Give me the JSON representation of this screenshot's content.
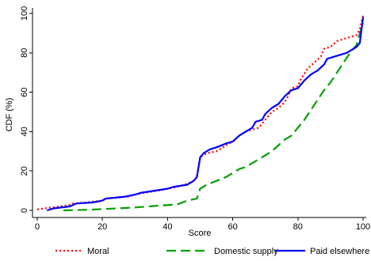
{
  "chart_data": {
    "type": "line",
    "title": "",
    "xlabel": "Score",
    "ylabel": "CDF (%)",
    "xlim": [
      0,
      100
    ],
    "ylim": [
      0,
      100
    ],
    "x_ticks": [
      "0",
      "20",
      "40",
      "60",
      "80",
      "100"
    ],
    "y_ticks": [
      "0",
      "20",
      "40",
      "60",
      "80",
      "100"
    ],
    "grid": false,
    "legend_position": "bottom",
    "series": [
      {
        "name": "Moral",
        "color": "#ff0000",
        "style": "dotted",
        "points": [
          [
            0,
            0.5
          ],
          [
            3,
            1.2
          ],
          [
            7,
            2
          ],
          [
            10,
            2.8
          ],
          [
            11,
            3.5
          ],
          [
            15,
            4
          ],
          [
            20,
            5
          ],
          [
            21,
            6
          ],
          [
            28,
            7
          ],
          [
            30,
            8
          ],
          [
            33,
            9
          ],
          [
            37,
            10
          ],
          [
            40,
            11
          ],
          [
            43,
            12
          ],
          [
            46,
            13.5
          ],
          [
            48,
            15
          ],
          [
            49,
            17
          ],
          [
            50,
            27
          ],
          [
            52,
            29
          ],
          [
            55,
            30
          ],
          [
            58,
            33
          ],
          [
            60,
            35
          ],
          [
            62,
            38
          ],
          [
            64,
            40
          ],
          [
            66,
            41
          ],
          [
            68,
            42
          ],
          [
            69,
            44
          ],
          [
            70,
            46
          ],
          [
            72,
            50
          ],
          [
            74,
            52
          ],
          [
            76,
            55
          ],
          [
            77,
            58
          ],
          [
            78,
            62
          ],
          [
            80,
            63
          ],
          [
            81,
            67
          ],
          [
            83,
            72
          ],
          [
            85,
            75
          ],
          [
            87,
            78
          ],
          [
            88,
            82
          ],
          [
            90,
            83
          ],
          [
            92,
            86
          ],
          [
            94,
            87
          ],
          [
            96,
            88
          ],
          [
            98,
            89
          ],
          [
            99,
            92
          ],
          [
            100,
            99
          ]
        ]
      },
      {
        "name": "Domestic supply",
        "color": "#00a000",
        "style": "dashed",
        "points": [
          [
            8,
            0
          ],
          [
            15,
            0.3
          ],
          [
            22,
            0.8
          ],
          [
            30,
            1.5
          ],
          [
            38,
            2.5
          ],
          [
            43,
            3
          ],
          [
            46,
            5
          ],
          [
            49,
            6
          ],
          [
            50,
            11
          ],
          [
            52,
            13
          ],
          [
            55,
            15
          ],
          [
            58,
            17
          ],
          [
            60,
            19
          ],
          [
            62,
            21
          ],
          [
            64,
            22
          ],
          [
            66,
            24
          ],
          [
            68,
            26
          ],
          [
            70,
            28
          ],
          [
            72,
            30
          ],
          [
            74,
            33
          ],
          [
            76,
            36
          ],
          [
            78,
            38
          ],
          [
            80,
            42
          ],
          [
            82,
            46
          ],
          [
            84,
            51
          ],
          [
            86,
            56
          ],
          [
            88,
            61
          ],
          [
            90,
            65
          ],
          [
            92,
            70
          ],
          [
            94,
            75
          ],
          [
            96,
            80
          ],
          [
            98,
            84
          ],
          [
            99,
            90
          ],
          [
            100,
            95
          ]
        ]
      },
      {
        "name": "Paid elsewhere",
        "color": "#0000ff",
        "style": "solid",
        "points": [
          [
            3,
            0
          ],
          [
            5,
            1
          ],
          [
            10,
            2
          ],
          [
            12,
            3.5
          ],
          [
            17,
            4
          ],
          [
            20,
            5
          ],
          [
            21,
            6
          ],
          [
            27,
            7
          ],
          [
            30,
            8
          ],
          [
            32,
            9
          ],
          [
            36,
            10
          ],
          [
            40,
            11
          ],
          [
            42,
            12
          ],
          [
            46,
            13
          ],
          [
            48,
            15
          ],
          [
            49,
            17
          ],
          [
            50,
            27
          ],
          [
            51,
            29
          ],
          [
            53,
            31
          ],
          [
            55,
            32
          ],
          [
            58,
            34
          ],
          [
            60,
            35
          ],
          [
            62,
            38
          ],
          [
            64,
            40
          ],
          [
            66,
            42
          ],
          [
            67,
            45
          ],
          [
            69,
            46
          ],
          [
            70,
            49
          ],
          [
            72,
            52
          ],
          [
            74,
            54
          ],
          [
            76,
            58
          ],
          [
            78,
            61
          ],
          [
            80,
            62
          ],
          [
            82,
            66
          ],
          [
            84,
            69
          ],
          [
            86,
            71
          ],
          [
            88,
            74
          ],
          [
            89,
            77
          ],
          [
            91,
            78
          ],
          [
            93,
            79
          ],
          [
            95,
            80
          ],
          [
            97,
            82
          ],
          [
            98,
            83
          ],
          [
            99,
            85
          ],
          [
            100,
            98
          ]
        ]
      }
    ]
  }
}
